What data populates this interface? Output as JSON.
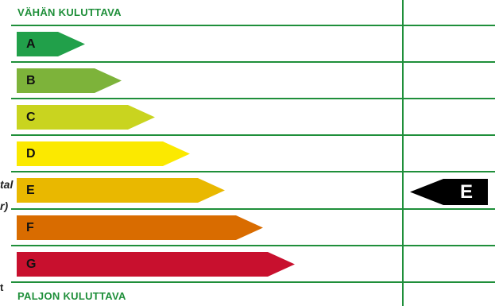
{
  "header_top": "VÄHÄN KULUTTAVA",
  "header_bottom": "PALJON KULUTTAVA",
  "classes": [
    {
      "letter": "A",
      "color": "#21a04a",
      "dark": false
    },
    {
      "letter": "B",
      "color": "#7db33a",
      "dark": false
    },
    {
      "letter": "C",
      "color": "#c9d41f",
      "dark": false
    },
    {
      "letter": "D",
      "color": "#fbe900",
      "dark": false
    },
    {
      "letter": "E",
      "color": "#e9b800",
      "dark": false
    },
    {
      "letter": "F",
      "color": "#d96c00",
      "dark": false
    },
    {
      "letter": "G",
      "color": "#c8102e",
      "dark": false
    }
  ],
  "rating": {
    "letter": "E",
    "color": "#000000"
  },
  "side_fragments": [
    "tal",
    "r)",
    "t"
  ],
  "colors": {
    "line": "#1f8f3a",
    "header_text": "#1f8f3a"
  }
}
